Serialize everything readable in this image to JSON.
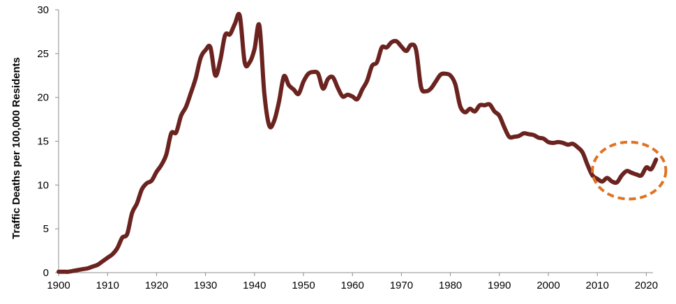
{
  "chart_data": {
    "type": "line",
    "title": "",
    "xlabel": "",
    "ylabel": "Traffic Deaths per 100,000 Residents",
    "xlim": [
      1900,
      2022
    ],
    "ylim": [
      0,
      30
    ],
    "x_ticks": [
      1900,
      1910,
      1920,
      1930,
      1940,
      1950,
      1960,
      1970,
      1980,
      1990,
      2000,
      2010,
      2020
    ],
    "y_ticks": [
      0,
      5,
      10,
      15,
      20,
      25,
      30
    ],
    "grid": false,
    "legend": "none",
    "series": [
      {
        "color": "#6b2320",
        "points": [
          [
            1900,
            0.1
          ],
          [
            1901,
            0.1
          ],
          [
            1902,
            0.1
          ],
          [
            1903,
            0.2
          ],
          [
            1904,
            0.3
          ],
          [
            1905,
            0.4
          ],
          [
            1906,
            0.5
          ],
          [
            1907,
            0.7
          ],
          [
            1908,
            0.9
          ],
          [
            1909,
            1.3
          ],
          [
            1910,
            1.7
          ],
          [
            1911,
            2.1
          ],
          [
            1912,
            2.8
          ],
          [
            1913,
            4.0
          ],
          [
            1914,
            4.4
          ],
          [
            1915,
            6.8
          ],
          [
            1916,
            7.9
          ],
          [
            1917,
            9.5
          ],
          [
            1918,
            10.2
          ],
          [
            1919,
            10.5
          ],
          [
            1920,
            11.5
          ],
          [
            1921,
            12.3
          ],
          [
            1922,
            13.5
          ],
          [
            1923,
            15.9
          ],
          [
            1924,
            16.0
          ],
          [
            1925,
            17.9
          ],
          [
            1926,
            18.9
          ],
          [
            1927,
            20.5
          ],
          [
            1928,
            22.2
          ],
          [
            1929,
            24.5
          ],
          [
            1930,
            25.4
          ],
          [
            1931,
            25.7
          ],
          [
            1932,
            22.5
          ],
          [
            1933,
            24.2
          ],
          [
            1934,
            27.1
          ],
          [
            1935,
            27.2
          ],
          [
            1936,
            28.4
          ],
          [
            1937,
            29.3
          ],
          [
            1938,
            24.0
          ],
          [
            1939,
            24.0
          ],
          [
            1940,
            25.5
          ],
          [
            1941,
            28.2
          ],
          [
            1942,
            20.5
          ],
          [
            1943,
            16.8
          ],
          [
            1944,
            17.3
          ],
          [
            1945,
            19.5
          ],
          [
            1946,
            22.4
          ],
          [
            1947,
            21.4
          ],
          [
            1948,
            20.9
          ],
          [
            1949,
            20.4
          ],
          [
            1950,
            21.8
          ],
          [
            1951,
            22.7
          ],
          [
            1952,
            22.9
          ],
          [
            1953,
            22.7
          ],
          [
            1954,
            21.0
          ],
          [
            1955,
            22.1
          ],
          [
            1956,
            22.3
          ],
          [
            1957,
            21.1
          ],
          [
            1958,
            20.1
          ],
          [
            1959,
            20.3
          ],
          [
            1960,
            20.1
          ],
          [
            1961,
            19.8
          ],
          [
            1962,
            20.9
          ],
          [
            1963,
            21.9
          ],
          [
            1964,
            23.6
          ],
          [
            1965,
            24.0
          ],
          [
            1966,
            25.7
          ],
          [
            1967,
            25.7
          ],
          [
            1968,
            26.3
          ],
          [
            1969,
            26.4
          ],
          [
            1970,
            25.8
          ],
          [
            1971,
            25.3
          ],
          [
            1972,
            26.0
          ],
          [
            1973,
            25.4
          ],
          [
            1974,
            21.2
          ],
          [
            1975,
            20.7
          ],
          [
            1976,
            21.0
          ],
          [
            1977,
            21.8
          ],
          [
            1978,
            22.6
          ],
          [
            1979,
            22.7
          ],
          [
            1980,
            22.5
          ],
          [
            1981,
            21.5
          ],
          [
            1982,
            19.0
          ],
          [
            1983,
            18.3
          ],
          [
            1984,
            18.7
          ],
          [
            1985,
            18.4
          ],
          [
            1986,
            19.1
          ],
          [
            1987,
            19.1
          ],
          [
            1988,
            19.2
          ],
          [
            1989,
            18.4
          ],
          [
            1990,
            17.9
          ],
          [
            1991,
            16.6
          ],
          [
            1992,
            15.5
          ],
          [
            1993,
            15.5
          ],
          [
            1994,
            15.6
          ],
          [
            1995,
            15.9
          ],
          [
            1996,
            15.8
          ],
          [
            1997,
            15.7
          ],
          [
            1998,
            15.4
          ],
          [
            1999,
            15.3
          ],
          [
            2000,
            14.9
          ],
          [
            2001,
            14.8
          ],
          [
            2002,
            14.9
          ],
          [
            2003,
            14.8
          ],
          [
            2004,
            14.6
          ],
          [
            2005,
            14.7
          ],
          [
            2006,
            14.3
          ],
          [
            2007,
            13.7
          ],
          [
            2008,
            12.3
          ],
          [
            2009,
            11.1
          ],
          [
            2010,
            10.7
          ],
          [
            2011,
            10.4
          ],
          [
            2012,
            10.8
          ],
          [
            2013,
            10.4
          ],
          [
            2014,
            10.3
          ],
          [
            2015,
            11.1
          ],
          [
            2016,
            11.6
          ],
          [
            2017,
            11.4
          ],
          [
            2018,
            11.2
          ],
          [
            2019,
            11.1
          ],
          [
            2020,
            12.0
          ],
          [
            2021,
            11.8
          ],
          [
            2022,
            12.9
          ]
        ]
      }
    ],
    "highlight": {
      "shape": "dashed-ellipse",
      "color": "#e07222",
      "x_range": [
        2009,
        2024
      ],
      "y_range": [
        8.4,
        14.9
      ]
    },
    "colors": {
      "axis": "#8c8c8c",
      "background": "#ffffff"
    }
  }
}
